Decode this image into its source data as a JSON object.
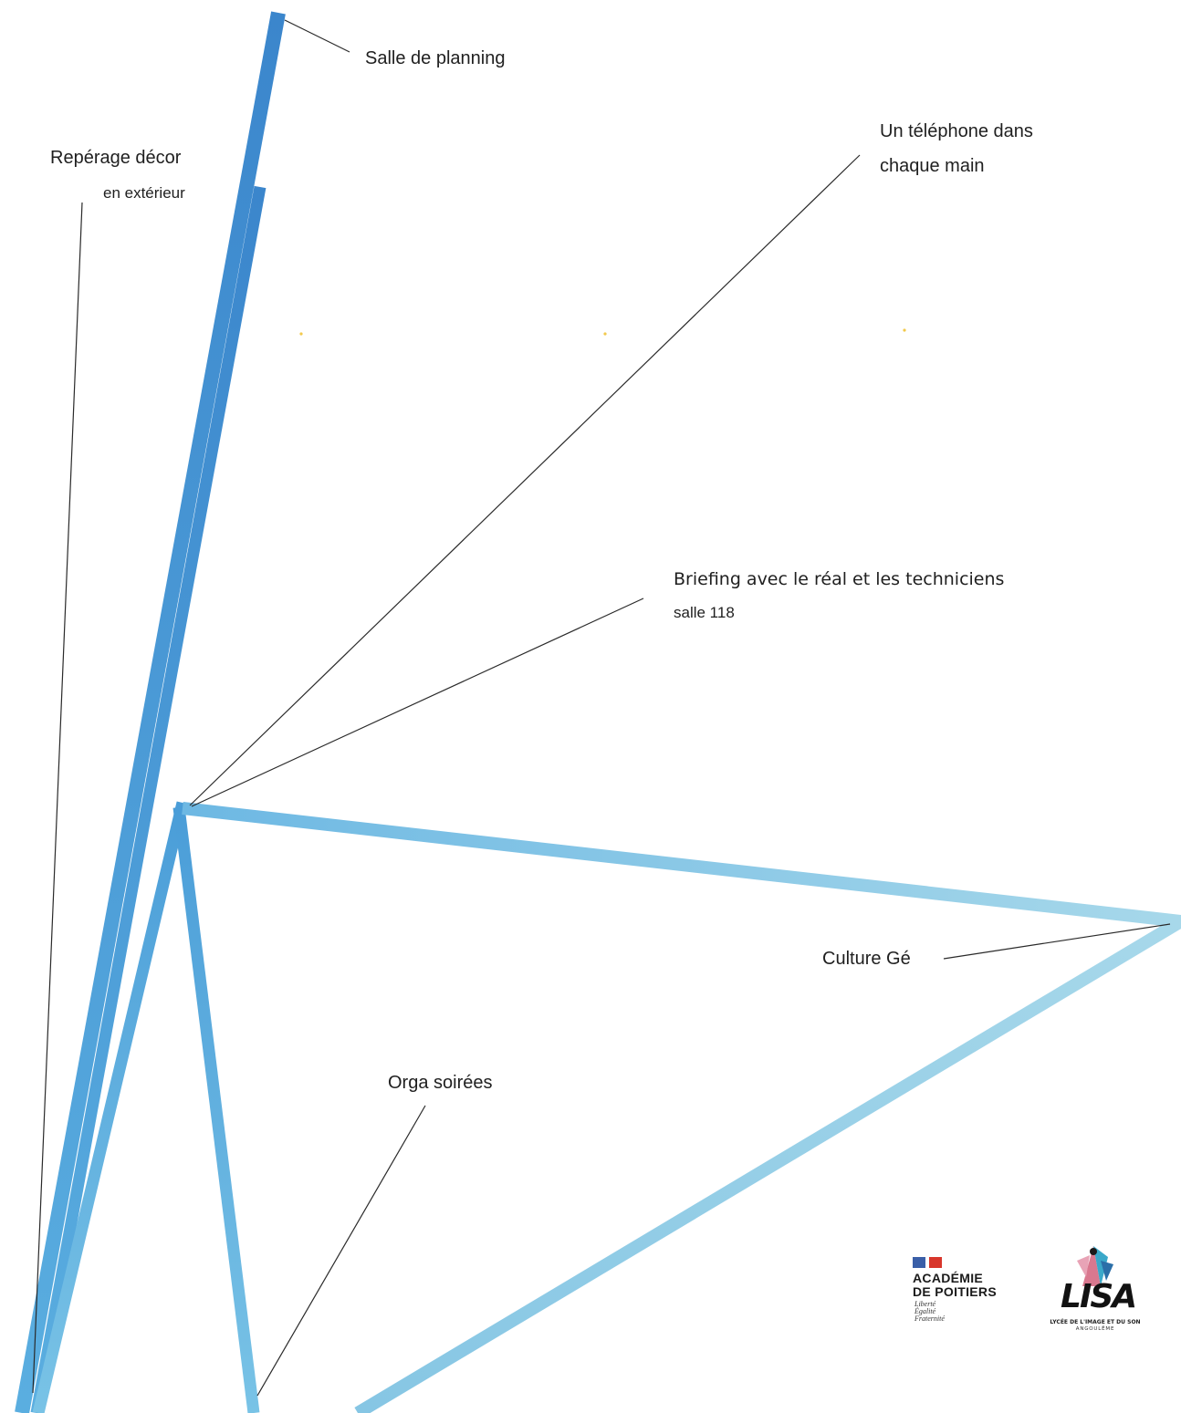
{
  "labels": {
    "salle_planning": "Salle de planning",
    "reperage": "Repérage décor",
    "reperage_sub": "en extérieur",
    "telephone_line1": "Un téléphone dans",
    "telephone_line2": "chaque main",
    "briefing": "Briefing avec le réal et les techniciens",
    "briefing_sub": "salle 118",
    "culture": "Culture Gé",
    "orga": "Orga soirées"
  },
  "logos": {
    "academie_line1": "ACADÉMIE",
    "academie_line2": "DE POITIERS",
    "academie_motto": "Liberté\nÉgalité\nFraternité",
    "lisa_word": "LISA",
    "lisa_tagline": "LYCÉE DE L'IMAGE ET DU SON",
    "lisa_city": "ANGOULÊME"
  },
  "colors": {
    "stroke_dark": "#3b86cc",
    "stroke_mid": "#5aaee0",
    "stroke_light": "#9fd3e8",
    "leader": "#2a2a2a"
  }
}
